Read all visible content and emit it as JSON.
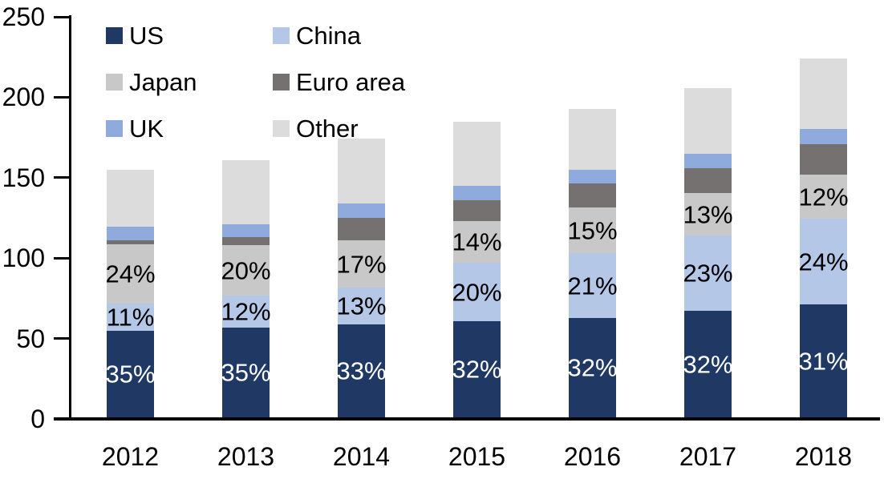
{
  "chart_data": {
    "type": "bar",
    "stacked": true,
    "title": "",
    "xlabel": "",
    "ylabel": "",
    "categories": [
      "2012",
      "2013",
      "2014",
      "2015",
      "2016",
      "2017",
      "2018"
    ],
    "series": [
      {
        "name": "US",
        "color": "#1f3864",
        "values": [
          54,
          56,
          58,
          60,
          62,
          66,
          70
        ],
        "labels": [
          "35%",
          "35%",
          "33%",
          "32%",
          "32%",
          "32%",
          "31%"
        ],
        "label_color": "#ffffff"
      },
      {
        "name": "China",
        "color": "#b4c7e7",
        "values": [
          16.5,
          19.5,
          22.5,
          36,
          40,
          47,
          53.5
        ],
        "labels": [
          "11%",
          "12%",
          "13%",
          "20%",
          "21%",
          "23%",
          "24%"
        ],
        "label_color": "#000000"
      },
      {
        "name": "Japan",
        "color": "#c8c8c8",
        "values": [
          37,
          31.5,
          29.5,
          26,
          28.5,
          26.5,
          27.5
        ],
        "labels": [
          "24%",
          "20%",
          "17%",
          "14%",
          "15%",
          "13%",
          "12%"
        ],
        "label_color": "#000000"
      },
      {
        "name": "Euro area",
        "color": "#767171",
        "values": [
          2.5,
          5,
          14,
          13,
          15,
          15.5,
          19
        ],
        "labels": null,
        "label_color": null
      },
      {
        "name": "UK",
        "color": "#8faadc",
        "values": [
          8.5,
          8,
          9,
          9,
          8.5,
          9,
          9.5
        ],
        "labels": null,
        "label_color": null
      },
      {
        "name": "Other",
        "color": "#dcdcdc",
        "values": [
          35.5,
          40,
          40.5,
          40,
          37.5,
          40.5,
          43.5
        ],
        "labels": null,
        "label_color": null
      }
    ],
    "totals": [
      154,
      160,
      173.5,
      184,
      191.5,
      204.5,
      223
    ],
    "ylim": [
      0,
      250
    ],
    "yticks": [
      0,
      50,
      100,
      150,
      200,
      250
    ],
    "grid": false,
    "legend_position": "top-left",
    "legend_columns": 2,
    "legend_order": [
      "US",
      "China",
      "Japan",
      "Euro area",
      "UK",
      "Other"
    ]
  },
  "colors": {
    "axis": "#000000",
    "background": "#ffffff",
    "bar_label_light": "#ffffff",
    "bar_label_dark": "#000000"
  }
}
